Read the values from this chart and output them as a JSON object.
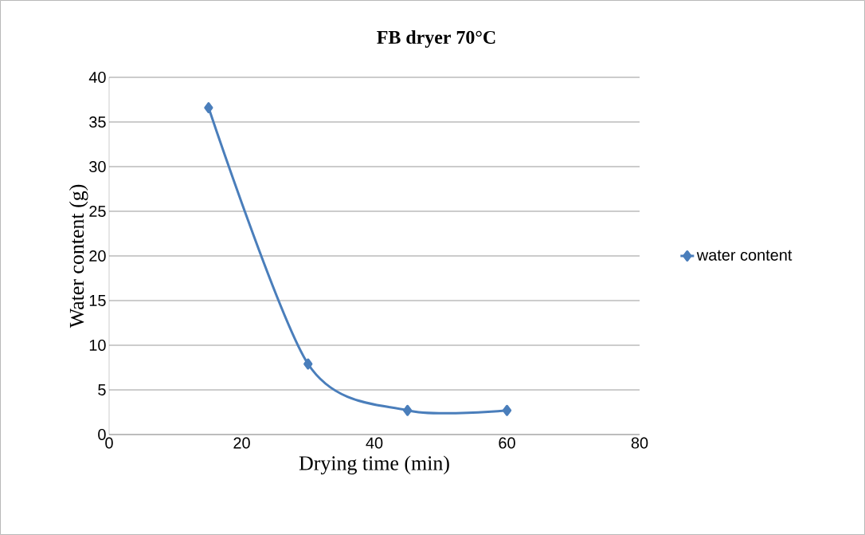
{
  "chart_data": {
    "type": "line",
    "title": "FB dryer 70°C",
    "xlabel": "Drying time (min)",
    "ylabel": "Water content (g)",
    "x": [
      15,
      30,
      45,
      60
    ],
    "series": [
      {
        "name": "water content",
        "color": "#4a7ebb",
        "values": [
          36.6,
          7.9,
          2.7,
          2.7
        ]
      }
    ],
    "xlim": [
      0,
      80
    ],
    "ylim": [
      0,
      40
    ],
    "xticks": [
      0,
      20,
      40,
      60,
      80
    ],
    "yticks": [
      0,
      5,
      10,
      15,
      20,
      25,
      30,
      35,
      40
    ],
    "grid": "y",
    "legend": "right",
    "marker": "diamond",
    "line_style": "solid"
  }
}
